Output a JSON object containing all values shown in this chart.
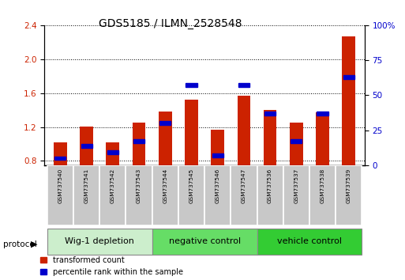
{
  "title": "GDS5185 / ILMN_2528548",
  "samples": [
    "GSM737540",
    "GSM737541",
    "GSM737542",
    "GSM737543",
    "GSM737544",
    "GSM737545",
    "GSM737546",
    "GSM737547",
    "GSM737536",
    "GSM737537",
    "GSM737538",
    "GSM737539"
  ],
  "transformed_count": [
    1.02,
    1.21,
    1.02,
    1.25,
    1.38,
    1.52,
    1.17,
    1.57,
    1.4,
    1.25,
    1.37,
    2.27
  ],
  "percentile_rank_pct": [
    5,
    14,
    9,
    17,
    30,
    57,
    7,
    57,
    37,
    17,
    37,
    63
  ],
  "groups": [
    {
      "label": "Wig-1 depletion",
      "start": 0,
      "end": 4,
      "color": "#cceecc"
    },
    {
      "label": "negative control",
      "start": 4,
      "end": 8,
      "color": "#66dd66"
    },
    {
      "label": "vehicle control",
      "start": 8,
      "end": 12,
      "color": "#33cc33"
    }
  ],
  "ylim_left": [
    0.75,
    2.4
  ],
  "ylim_right": [
    0,
    100
  ],
  "yticks_left": [
    0.8,
    1.2,
    1.6,
    2.0,
    2.4
  ],
  "yticks_right": [
    0,
    25,
    50,
    75,
    100
  ],
  "bar_color_red": "#cc2200",
  "bar_color_blue": "#0000cc",
  "bar_width": 0.5,
  "bg_color": "#ffffff",
  "grid_color": "#000000",
  "tick_label_color_left": "#cc2200",
  "tick_label_color_right": "#0000cc",
  "legend_red_label": "transformed count",
  "legend_blue_label": "percentile rank within the sample",
  "protocol_label": "protocol",
  "group_label_fontsize": 8,
  "title_fontsize": 10,
  "sample_box_color": "#c8c8c8"
}
